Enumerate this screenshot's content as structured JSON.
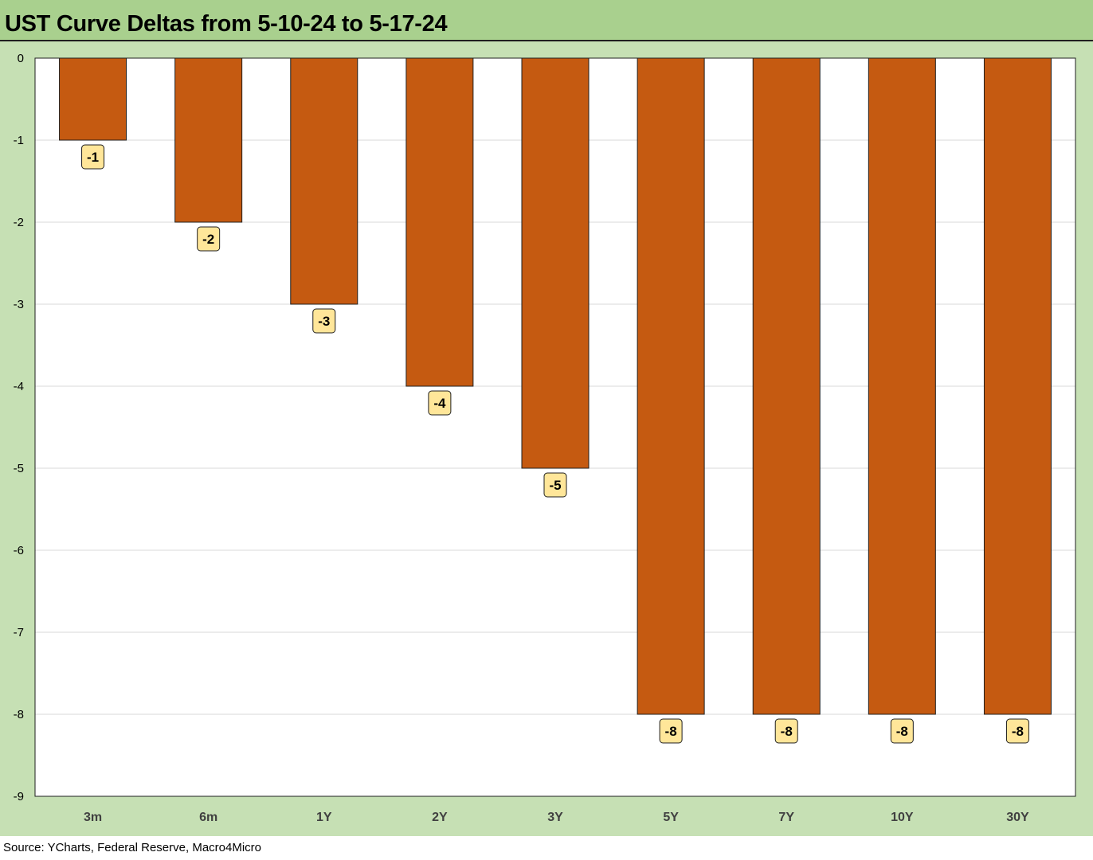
{
  "title": "UST Curve Deltas from 5-10-24 to 5-17-24",
  "source": "Source: YCharts, Federal Reserve, Macro4Micro",
  "colors": {
    "bar_fill": "#c55a11",
    "bar_stroke": "#1f1f1f",
    "label_fill": "#ffe699",
    "background": "#c6e0b4",
    "title_bar": "#a9d08e",
    "plot_bg": "#ffffff",
    "gridline": "#d9d9d9"
  },
  "chart_data": {
    "type": "bar",
    "title": "UST Curve Deltas from 5-10-24 to 5-17-24",
    "categories": [
      "3m",
      "6m",
      "1Y",
      "2Y",
      "3Y",
      "5Y",
      "7Y",
      "10Y",
      "30Y"
    ],
    "values": [
      -1,
      -2,
      -3,
      -4,
      -5,
      -8,
      -8,
      -8,
      -8
    ],
    "data_labels": [
      "-1",
      "-2",
      "-3",
      "-4",
      "-5",
      "-8",
      "-8",
      "-8",
      "-8"
    ],
    "ylim": [
      -9,
      0
    ],
    "yticks": [
      0,
      -1,
      -2,
      -3,
      -4,
      -5,
      -6,
      -7,
      -8,
      -9
    ],
    "grid": true,
    "legend": "none",
    "xlabel": "",
    "ylabel": ""
  }
}
